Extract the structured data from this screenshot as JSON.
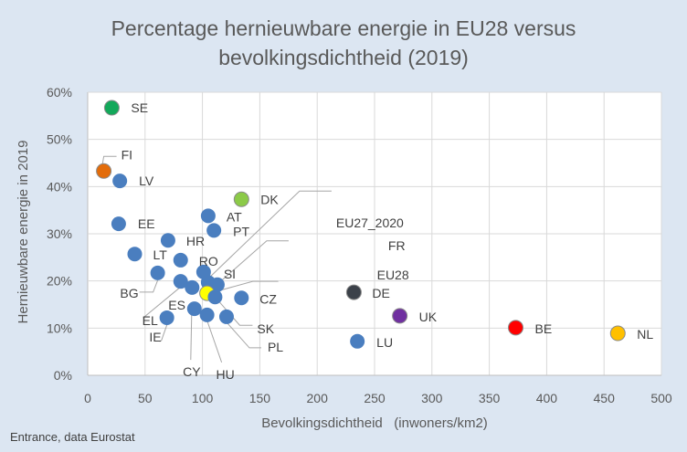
{
  "chart_data": {
    "type": "scatter",
    "title_lines": [
      "Percentage hernieuwbare energie in EU28 versus",
      "bevolkingsdichtheid (2019)"
    ],
    "xlabel": "Bevolkingsdichtheid   (inwoners/km2)",
    "ylabel": "Hernieuwbare energie in 2019",
    "xlim": [
      0,
      500
    ],
    "ylim": [
      0,
      60
    ],
    "x_ticks": [
      "0",
      "50",
      "100",
      "150",
      "200",
      "250",
      "300",
      "350",
      "400",
      "450",
      "500"
    ],
    "y_ticks": [
      "0%",
      "10%",
      "20%",
      "30%",
      "40%",
      "50%",
      "60%"
    ],
    "grid": true,
    "default_color": "#4a7ebf",
    "points": [
      {
        "label": "SE",
        "x": 21,
        "y": 56.7,
        "color": "#13a85a"
      },
      {
        "label": "FI",
        "x": 14,
        "y": 43.3,
        "color": "#e36c0a"
      },
      {
        "label": "LV",
        "x": 28,
        "y": 41.2,
        "color": "#4a7ebf"
      },
      {
        "label": "EE",
        "x": 27,
        "y": 32.1,
        "color": "#4a7ebf"
      },
      {
        "label": "DK",
        "x": 134,
        "y": 37.3,
        "color": "#8cca48"
      },
      {
        "label": "AT",
        "x": 105,
        "y": 33.8,
        "color": "#4a7ebf"
      },
      {
        "label": "PT",
        "x": 110,
        "y": 30.7,
        "color": "#4a7ebf"
      },
      {
        "label": "HR",
        "x": 70,
        "y": 28.6,
        "color": "#4a7ebf"
      },
      {
        "label": "LT",
        "x": 41,
        "y": 25.7,
        "color": "#4a7ebf"
      },
      {
        "label": "RO",
        "x": 81,
        "y": 24.4,
        "color": "#4a7ebf"
      },
      {
        "label": "BG",
        "x": 61,
        "y": 21.7,
        "color": "#4a7ebf"
      },
      {
        "label": "SI",
        "x": 101,
        "y": 21.9,
        "color": "#4a7ebf"
      },
      {
        "label": "EU27_2020",
        "x": 105,
        "y": 19.7,
        "color": "#4a7ebf"
      },
      {
        "label": "FR",
        "x": 113,
        "y": 19.2,
        "color": "#4a7ebf"
      },
      {
        "label": "EU28",
        "x": 104,
        "y": 17.4,
        "color": "#ffff00"
      },
      {
        "label": "EL",
        "x": 81,
        "y": 19.9,
        "color": "#4a7ebf"
      },
      {
        "label": "ES",
        "x": 91,
        "y": 18.6,
        "color": "#4a7ebf"
      },
      {
        "label": "CZ",
        "x": 134,
        "y": 16.4,
        "color": "#4a7ebf"
      },
      {
        "label": "SK",
        "x": 111,
        "y": 16.6,
        "color": "#4a7ebf"
      },
      {
        "label": "CY",
        "x": 93,
        "y": 14.1,
        "color": "#4a7ebf"
      },
      {
        "label": "IE",
        "x": 69,
        "y": 12.2,
        "color": "#4a7ebf"
      },
      {
        "label": "HU",
        "x": 104,
        "y": 12.8,
        "color": "#4a7ebf"
      },
      {
        "label": "PL",
        "x": 121,
        "y": 12.4,
        "color": "#4a7ebf"
      },
      {
        "label": "DE",
        "x": 232,
        "y": 17.6,
        "color": "#3b4149"
      },
      {
        "label": "UK",
        "x": 272,
        "y": 12.6,
        "color": "#7030a0"
      },
      {
        "label": "LU",
        "x": 235,
        "y": 7.2,
        "color": "#4a7ebf"
      },
      {
        "label": "BE",
        "x": 373,
        "y": 10.1,
        "color": "#ff0000"
      },
      {
        "label": "NL",
        "x": 462,
        "y": 8.9,
        "color": "#ffc000"
      }
    ]
  },
  "footer": "Entrance, data Eurostat"
}
